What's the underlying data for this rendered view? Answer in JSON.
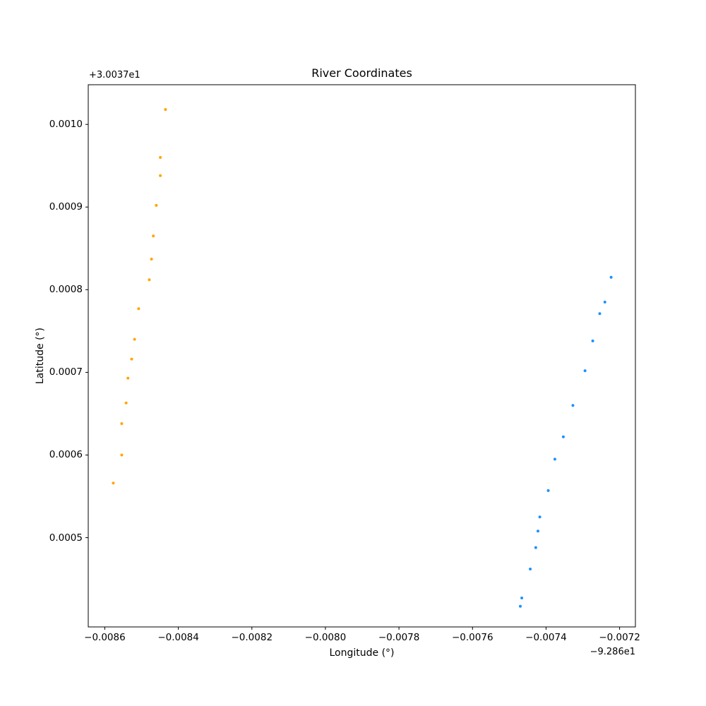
{
  "title": "River Coordinates",
  "chart_data": {
    "type": "scatter",
    "title": "River Coordinates",
    "xlabel": "Longitude (°)",
    "ylabel": "Latitude (°)",
    "x_offset_label": "−9.286e1",
    "y_offset_label": "+3.0037e1",
    "grid": false,
    "legend": "none",
    "xlim": [
      -0.008645,
      -0.007157
    ],
    "ylim": [
      0.000392,
      0.001048
    ],
    "x_ticks": [
      -0.0086,
      -0.0084,
      -0.0082,
      -0.008,
      -0.0078,
      -0.0076,
      -0.0074,
      -0.0072
    ],
    "x_tick_labels": [
      "−0.0086",
      "−0.0084",
      "−0.0082",
      "−0.0080",
      "−0.0078",
      "−0.0076",
      "−0.0074",
      "−0.0072"
    ],
    "y_ticks": [
      0.0005,
      0.0006,
      0.0007,
      0.0008,
      0.0009,
      0.001
    ],
    "y_tick_labels": [
      "0.0005",
      "0.0006",
      "0.0007",
      "0.0008",
      "0.0009",
      "0.0010"
    ],
    "marker_radius_px": 2,
    "series": [
      {
        "name": "orange",
        "color": "#FFA500",
        "points": [
          [
            -0.008435,
            0.001018
          ],
          [
            -0.008449,
            0.00096
          ],
          [
            -0.008449,
            0.000938
          ],
          [
            -0.00846,
            0.000902
          ],
          [
            -0.008468,
            0.000865
          ],
          [
            -0.008473,
            0.000837
          ],
          [
            -0.008479,
            0.000812
          ],
          [
            -0.008508,
            0.000777
          ],
          [
            -0.008519,
            0.00074
          ],
          [
            -0.008527,
            0.000716
          ],
          [
            -0.008537,
            0.000693
          ],
          [
            -0.008542,
            0.000663
          ],
          [
            -0.008554,
            0.000638
          ],
          [
            -0.008554,
            0.0006
          ],
          [
            -0.008577,
            0.000566
          ]
        ]
      },
      {
        "name": "blue",
        "color": "#1E90FF",
        "points": [
          [
            -0.007223,
            0.000815
          ],
          [
            -0.00724,
            0.000785
          ],
          [
            -0.007254,
            0.000771
          ],
          [
            -0.007273,
            0.000738
          ],
          [
            -0.007294,
            0.000702
          ],
          [
            -0.007327,
            0.00066
          ],
          [
            -0.007353,
            0.000622
          ],
          [
            -0.007376,
            0.000595
          ],
          [
            -0.007394,
            0.000557
          ],
          [
            -0.007417,
            0.000525
          ],
          [
            -0.007422,
            0.000508
          ],
          [
            -0.007428,
            0.000488
          ],
          [
            -0.007443,
            0.000462
          ],
          [
            -0.007466,
            0.000427
          ],
          [
            -0.00747,
            0.000417
          ]
        ]
      }
    ]
  }
}
